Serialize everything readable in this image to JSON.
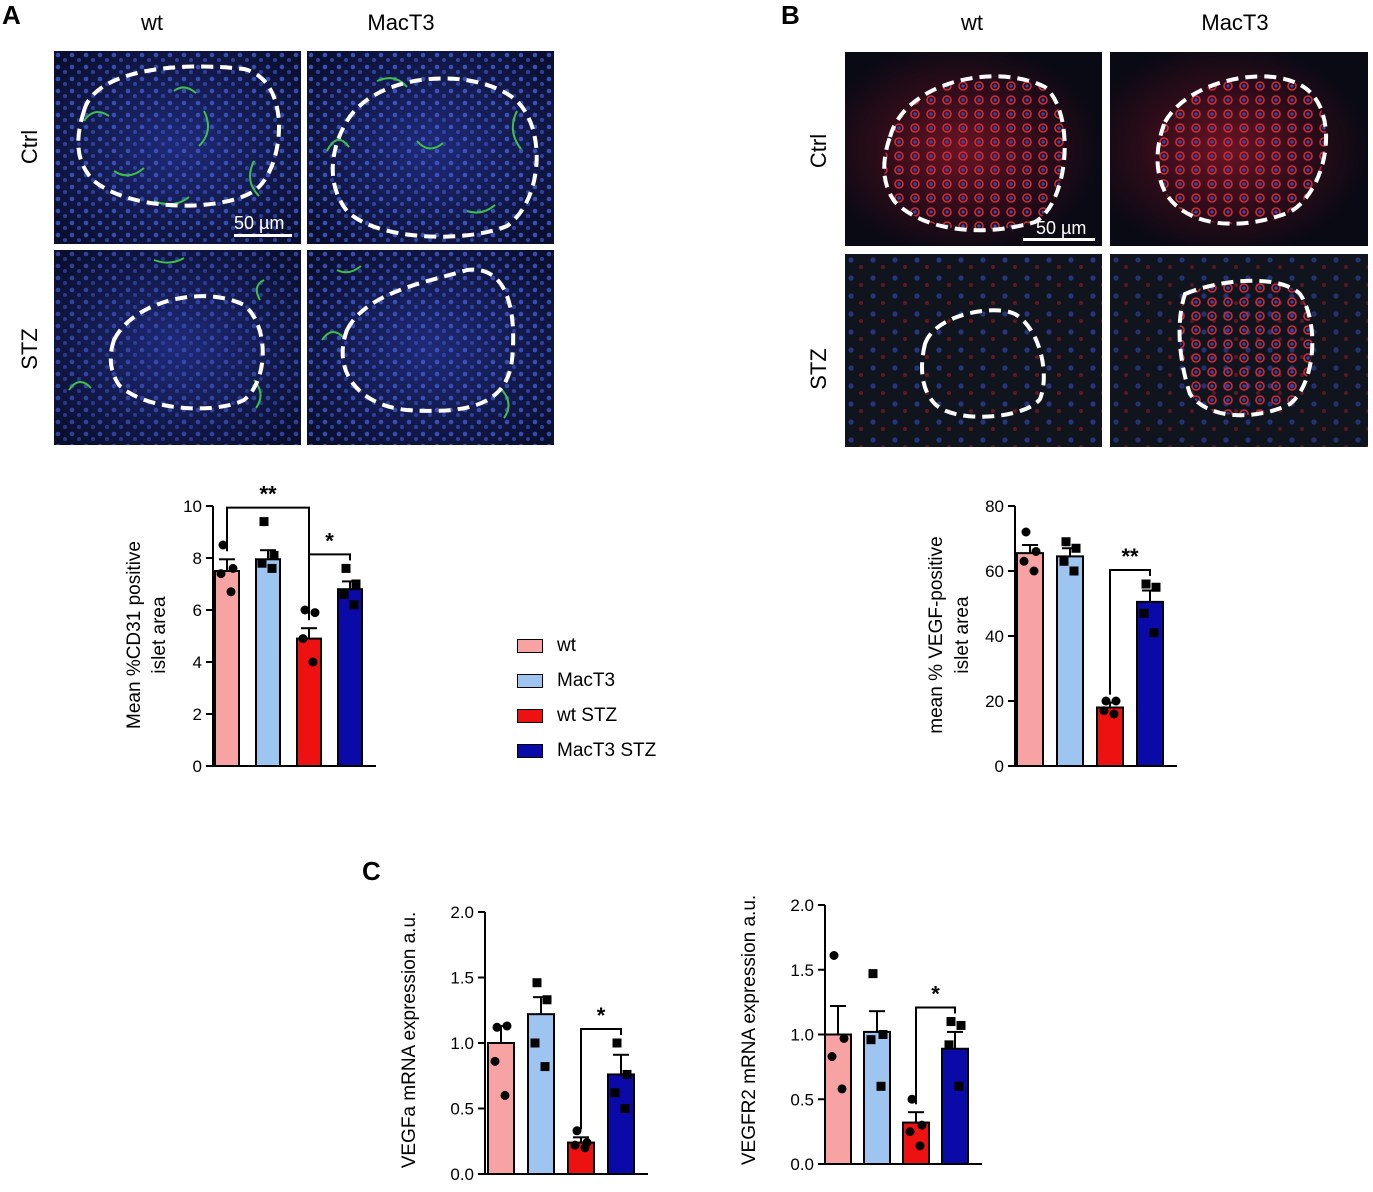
{
  "panels": {
    "a": "A",
    "b": "B",
    "c": "C"
  },
  "micrographs": {
    "columns": [
      "wt",
      "MacT3"
    ],
    "rows": [
      "Ctrl",
      "STZ"
    ],
    "scale_bar_label": "50 µm"
  },
  "colors": {
    "wt": "#f7a3a3",
    "MacT3": "#9ec5ef",
    "wt STZ": "#ee1111",
    "MacT3 STZ": "#0a0aa8"
  },
  "legend": [
    "wt",
    "MacT3",
    "wt STZ",
    "MacT3 STZ"
  ],
  "chart_data": [
    {
      "type": "bar",
      "panel": "A",
      "categories": [
        "wt",
        "MacT3",
        "wt STZ",
        "MacT3 STZ"
      ],
      "values": [
        7.5,
        7.95,
        4.9,
        6.8
      ],
      "errors": [
        0.45,
        0.35,
        0.4,
        0.3
      ],
      "points": [
        [
          8.5,
          7.6,
          7.4,
          6.7
        ],
        [
          9.4,
          8.1,
          7.8,
          7.6
        ],
        [
          6.0,
          5.9,
          4.9,
          4.0
        ],
        [
          7.6,
          7.0,
          6.6,
          6.2
        ]
      ],
      "ylabel": [
        "Mean %CD31 positive",
        "islet area"
      ],
      "ylim": [
        0,
        10
      ],
      "yticks": [
        "0",
        "2",
        "4",
        "6",
        "8",
        "10"
      ],
      "significance": [
        {
          "from": 0,
          "to": 2,
          "label": "**"
        },
        {
          "from": 2,
          "to": 3,
          "label": "*"
        }
      ]
    },
    {
      "type": "bar",
      "panel": "B",
      "categories": [
        "wt",
        "MacT3",
        "wt STZ",
        "MacT3 STZ"
      ],
      "values": [
        65.5,
        64.5,
        18,
        50.5
      ],
      "errors": [
        2.5,
        2.5,
        1.5,
        3.5
      ],
      "points": [
        [
          72,
          66,
          63,
          60
        ],
        [
          69,
          67,
          63,
          60
        ],
        [
          20,
          20,
          17,
          16
        ],
        [
          56,
          55,
          47,
          41
        ]
      ],
      "ylabel": [
        "mean % VEGF-positive",
        "islet area"
      ],
      "ylim": [
        0,
        80
      ],
      "yticks": [
        "0",
        "20",
        "40",
        "60",
        "80"
      ],
      "significance": [
        {
          "from": 2,
          "to": 3,
          "label": "**"
        }
      ]
    },
    {
      "type": "bar",
      "panel": "C",
      "categories": [
        "wt",
        "MacT3",
        "wt STZ",
        "MacT3 STZ"
      ],
      "values": [
        1.0,
        1.22,
        0.24,
        0.76
      ],
      "errors": [
        0.13,
        0.13,
        0.04,
        0.15
      ],
      "points": [
        [
          1.12,
          1.13,
          0.86,
          0.6
        ],
        [
          1.46,
          1.33,
          1.0,
          0.82
        ],
        [
          0.33,
          0.24,
          0.22,
          0.2
        ],
        [
          1.0,
          0.76,
          0.62,
          0.5
        ]
      ],
      "ylabel": [
        "VEGFa mRNA expression a.u."
      ],
      "ylim": [
        0,
        2.0
      ],
      "yticks": [
        "0.0",
        "0.5",
        "1.0",
        "1.5",
        "2.0"
      ],
      "significance": [
        {
          "from": 2,
          "to": 3,
          "label": "*"
        }
      ]
    },
    {
      "type": "bar",
      "panel": "C",
      "categories": [
        "wt",
        "MacT3",
        "wt STZ",
        "MacT3 STZ"
      ],
      "values": [
        1.0,
        1.02,
        0.32,
        0.89
      ],
      "errors": [
        0.22,
        0.16,
        0.08,
        0.13
      ],
      "points": [
        [
          1.61,
          0.97,
          0.83,
          0.58
        ],
        [
          1.47,
          1.0,
          0.96,
          0.6
        ],
        [
          0.5,
          0.3,
          0.25,
          0.14
        ],
        [
          1.1,
          1.07,
          0.92,
          0.6
        ]
      ],
      "ylabel": [
        "VEGFR2 mRNA expression a.u."
      ],
      "ylim": [
        0,
        2.0
      ],
      "yticks": [
        "0.0",
        "0.5",
        "1.0",
        "1.5",
        "2.0"
      ],
      "significance": [
        {
          "from": 2,
          "to": 3,
          "label": "*"
        }
      ]
    }
  ]
}
